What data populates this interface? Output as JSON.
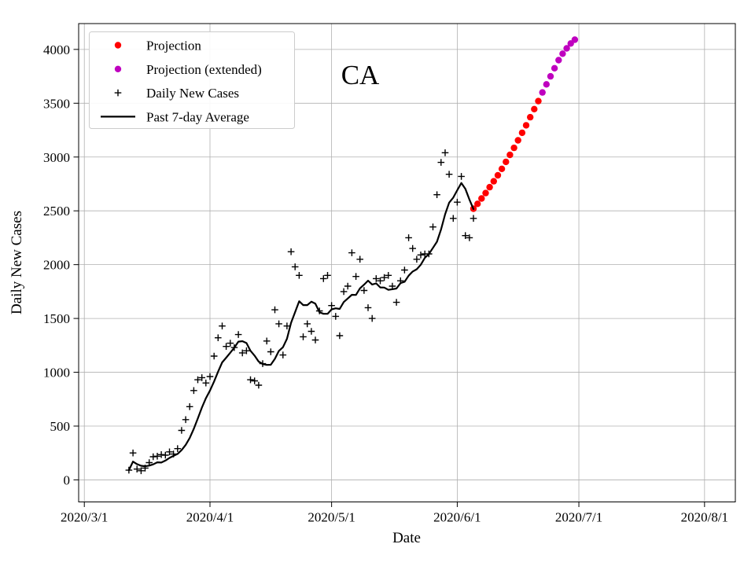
{
  "chart_data": {
    "type": "scatter",
    "title": "CA",
    "xlabel": "Date",
    "ylabel": "Daily New Cases",
    "grid": true,
    "legend_position": "upper left",
    "x_axis": {
      "ticks": [
        {
          "label": "2020/3/1",
          "date": "2020-03-01"
        },
        {
          "label": "2020/4/1",
          "date": "2020-04-01"
        },
        {
          "label": "2020/5/1",
          "date": "2020-05-01"
        },
        {
          "label": "2020/6/1",
          "date": "2020-06-01"
        },
        {
          "label": "2020/7/1",
          "date": "2020-07-01"
        },
        {
          "label": "2020/8/1",
          "date": "2020-08-01"
        }
      ]
    },
    "y_axis": {
      "ticks": [
        0,
        500,
        1000,
        1500,
        2000,
        2500,
        3000,
        3500,
        4000
      ]
    },
    "series": [
      {
        "name": "Projection",
        "marker": "dot",
        "color": "#ff0000",
        "points": [
          [
            "2020-06-05",
            2520
          ],
          [
            "2020-06-06",
            2565
          ],
          [
            "2020-06-07",
            2615
          ],
          [
            "2020-06-08",
            2665
          ],
          [
            "2020-06-09",
            2720
          ],
          [
            "2020-06-10",
            2775
          ],
          [
            "2020-06-11",
            2830
          ],
          [
            "2020-06-12",
            2890
          ],
          [
            "2020-06-13",
            2955
          ],
          [
            "2020-06-14",
            3020
          ],
          [
            "2020-06-15",
            3085
          ],
          [
            "2020-06-16",
            3155
          ],
          [
            "2020-06-17",
            3225
          ],
          [
            "2020-06-18",
            3295
          ],
          [
            "2020-06-19",
            3370
          ],
          [
            "2020-06-20",
            3445
          ],
          [
            "2020-06-21",
            3520
          ]
        ]
      },
      {
        "name": "Projection (extended)",
        "marker": "dot",
        "color": "#bf00bf",
        "points": [
          [
            "2020-06-22",
            3600
          ],
          [
            "2020-06-23",
            3675
          ],
          [
            "2020-06-24",
            3750
          ],
          [
            "2020-06-25",
            3825
          ],
          [
            "2020-06-26",
            3900
          ],
          [
            "2020-06-27",
            3960
          ],
          [
            "2020-06-28",
            4010
          ],
          [
            "2020-06-29",
            4055
          ],
          [
            "2020-06-30",
            4090
          ]
        ]
      },
      {
        "name": "Daily New Cases",
        "marker": "plus",
        "color": "#000000",
        "points": [
          [
            "2020-03-12",
            90
          ],
          [
            "2020-03-13",
            250
          ],
          [
            "2020-03-14",
            100
          ],
          [
            "2020-03-15",
            85
          ],
          [
            "2020-03-16",
            110
          ],
          [
            "2020-03-17",
            160
          ],
          [
            "2020-03-18",
            215
          ],
          [
            "2020-03-19",
            220
          ],
          [
            "2020-03-20",
            235
          ],
          [
            "2020-03-21",
            230
          ],
          [
            "2020-03-22",
            260
          ],
          [
            "2020-03-23",
            240
          ],
          [
            "2020-03-24",
            290
          ],
          [
            "2020-03-25",
            460
          ],
          [
            "2020-03-26",
            560
          ],
          [
            "2020-03-27",
            680
          ],
          [
            "2020-03-28",
            830
          ],
          [
            "2020-03-29",
            930
          ],
          [
            "2020-03-30",
            950
          ],
          [
            "2020-03-31",
            900
          ],
          [
            "2020-04-01",
            960
          ],
          [
            "2020-04-02",
            1150
          ],
          [
            "2020-04-03",
            1320
          ],
          [
            "2020-04-04",
            1430
          ],
          [
            "2020-04-05",
            1240
          ],
          [
            "2020-04-06",
            1270
          ],
          [
            "2020-04-07",
            1230
          ],
          [
            "2020-04-08",
            1350
          ],
          [
            "2020-04-09",
            1180
          ],
          [
            "2020-04-10",
            1200
          ],
          [
            "2020-04-11",
            930
          ],
          [
            "2020-04-12",
            920
          ],
          [
            "2020-04-13",
            880
          ],
          [
            "2020-04-14",
            1080
          ],
          [
            "2020-04-15",
            1290
          ],
          [
            "2020-04-16",
            1190
          ],
          [
            "2020-04-17",
            1580
          ],
          [
            "2020-04-18",
            1450
          ],
          [
            "2020-04-19",
            1160
          ],
          [
            "2020-04-20",
            1430
          ],
          [
            "2020-04-21",
            2120
          ],
          [
            "2020-04-22",
            1980
          ],
          [
            "2020-04-23",
            1900
          ],
          [
            "2020-04-24",
            1330
          ],
          [
            "2020-04-25",
            1450
          ],
          [
            "2020-04-26",
            1380
          ],
          [
            "2020-04-27",
            1300
          ],
          [
            "2020-04-28",
            1570
          ],
          [
            "2020-04-29",
            1870
          ],
          [
            "2020-04-30",
            1900
          ],
          [
            "2020-05-01",
            1620
          ],
          [
            "2020-05-02",
            1520
          ],
          [
            "2020-05-03",
            1340
          ],
          [
            "2020-05-04",
            1750
          ],
          [
            "2020-05-05",
            1800
          ],
          [
            "2020-05-06",
            2110
          ],
          [
            "2020-05-07",
            1890
          ],
          [
            "2020-05-08",
            2050
          ],
          [
            "2020-05-09",
            1760
          ],
          [
            "2020-05-10",
            1600
          ],
          [
            "2020-05-11",
            1500
          ],
          [
            "2020-05-12",
            1870
          ],
          [
            "2020-05-13",
            1850
          ],
          [
            "2020-05-14",
            1880
          ],
          [
            "2020-05-15",
            1900
          ],
          [
            "2020-05-16",
            1800
          ],
          [
            "2020-05-17",
            1650
          ],
          [
            "2020-05-18",
            1850
          ],
          [
            "2020-05-19",
            1950
          ],
          [
            "2020-05-20",
            2250
          ],
          [
            "2020-05-21",
            2150
          ],
          [
            "2020-05-22",
            2050
          ],
          [
            "2020-05-23",
            2090
          ],
          [
            "2020-05-24",
            2100
          ],
          [
            "2020-05-25",
            2100
          ],
          [
            "2020-05-26",
            2350
          ],
          [
            "2020-05-27",
            2650
          ],
          [
            "2020-05-28",
            2950
          ],
          [
            "2020-05-29",
            3040
          ],
          [
            "2020-05-30",
            2840
          ],
          [
            "2020-05-31",
            2430
          ],
          [
            "2020-06-01",
            2580
          ],
          [
            "2020-06-02",
            2820
          ],
          [
            "2020-06-03",
            2270
          ],
          [
            "2020-06-04",
            2250
          ],
          [
            "2020-06-05",
            2430
          ]
        ]
      },
      {
        "name": "Past 7-day Average",
        "marker": "line",
        "color": "#000000",
        "derived_from": "Daily New Cases",
        "window": 7
      }
    ]
  }
}
